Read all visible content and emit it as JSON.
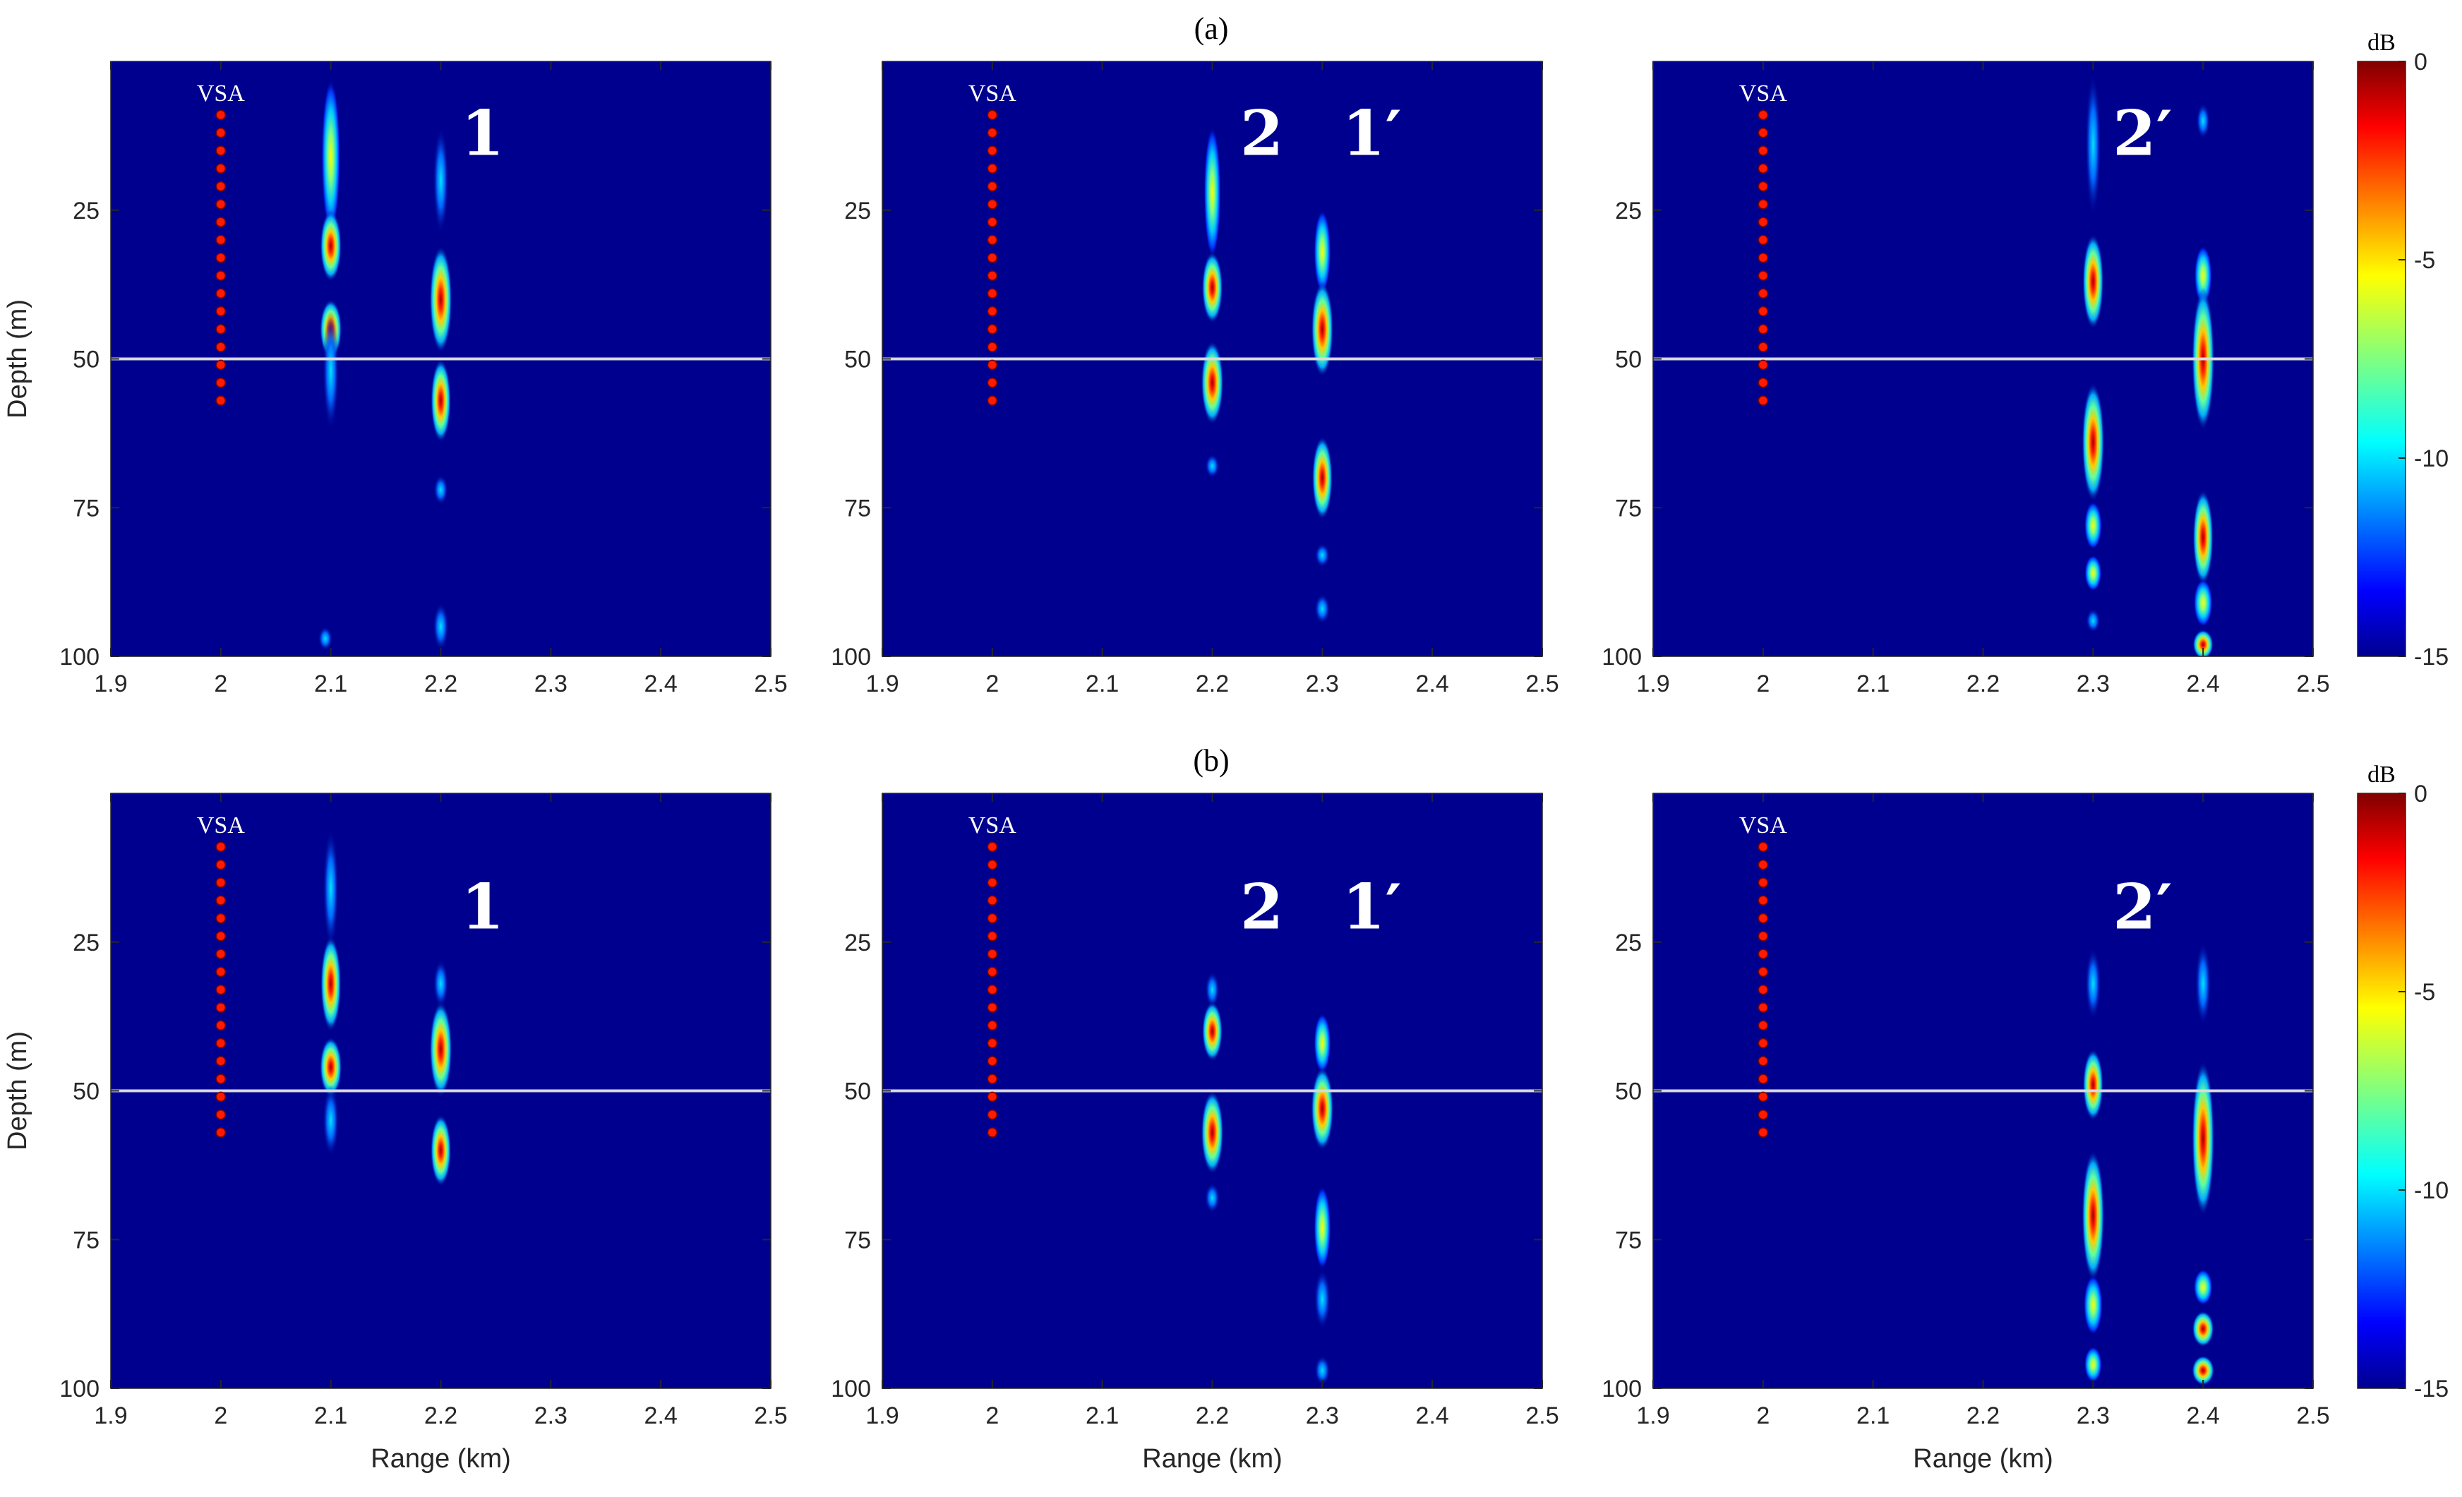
{
  "colors": {
    "background": "#00008f",
    "interface_line": "#d9d9d9",
    "element_dot": "#ff1a00",
    "element_dot_stroke": "#7a0000",
    "text_on_plot": "#ffffff"
  },
  "chart_data": [
    {
      "type": "heatmap",
      "id": "a1",
      "row": "(a)",
      "xlabel": "",
      "ylabel": "Depth (m)",
      "xlim": [
        1.9,
        2.5
      ],
      "ylim": [
        0,
        100
      ],
      "xticks": [
        "1.9",
        "2",
        "2.1",
        "2.2",
        "2.3",
        "2.4",
        "2.5"
      ],
      "yticks": [
        "25",
        "50",
        "75",
        "100"
      ],
      "interface_depth": 50,
      "array": {
        "label": "VSA",
        "range": 2.0,
        "depths": [
          9,
          12,
          15,
          18,
          21,
          24,
          27,
          30,
          33,
          36,
          39,
          42,
          45,
          48,
          51,
          54,
          57
        ]
      },
      "annotations": [
        {
          "text": "1",
          "range": 2.238,
          "depth": 13
        }
      ],
      "focal_streaks": [
        {
          "range": 2.1,
          "depth": 16,
          "length": 26,
          "level": 0.7
        },
        {
          "range": 2.1,
          "depth": 31,
          "length": 12,
          "level": 0.92
        },
        {
          "range": 2.1,
          "depth": 45,
          "length": 10,
          "level": 0.97
        },
        {
          "range": 2.1,
          "depth": 52,
          "length": 20,
          "level": 0.5
        },
        {
          "range": 2.2,
          "depth": 20,
          "length": 18,
          "level": 0.45
        },
        {
          "range": 2.2,
          "depth": 40,
          "length": 18,
          "level": 1.0
        },
        {
          "range": 2.2,
          "depth": 57,
          "length": 14,
          "level": 0.82
        },
        {
          "range": 2.2,
          "depth": 72,
          "length": 5,
          "level": 0.35
        },
        {
          "range": 2.2,
          "depth": 95,
          "length": 8,
          "level": 0.45
        },
        {
          "range": 2.095,
          "depth": 97,
          "length": 4,
          "level": 0.35
        }
      ]
    },
    {
      "type": "heatmap",
      "id": "a2",
      "row": "(a)",
      "xlabel": "",
      "ylabel": "",
      "xlim": [
        1.9,
        2.5
      ],
      "ylim": [
        0,
        100
      ],
      "xticks": [
        "1.9",
        "2",
        "2.1",
        "2.2",
        "2.3",
        "2.4",
        "2.5"
      ],
      "yticks": [
        "25",
        "50",
        "75",
        "100"
      ],
      "interface_depth": 50,
      "array": {
        "label": "VSA",
        "range": 2.0,
        "depths": [
          9,
          12,
          15,
          18,
          21,
          24,
          27,
          30,
          33,
          36,
          39,
          42,
          45,
          48,
          51,
          54,
          57
        ]
      },
      "annotations": [
        {
          "text": "2",
          "range": 2.245,
          "depth": 13
        },
        {
          "text": "1′",
          "range": 2.345,
          "depth": 13
        }
      ],
      "focal_streaks": [
        {
          "range": 2.2,
          "depth": 22,
          "length": 22,
          "level": 0.55
        },
        {
          "range": 2.2,
          "depth": 38,
          "length": 12,
          "level": 0.88
        },
        {
          "range": 2.2,
          "depth": 54,
          "length": 14,
          "level": 1.0
        },
        {
          "range": 2.2,
          "depth": 68,
          "length": 4,
          "level": 0.35
        },
        {
          "range": 2.3,
          "depth": 32,
          "length": 14,
          "level": 0.55
        },
        {
          "range": 2.3,
          "depth": 45,
          "length": 16,
          "level": 0.97
        },
        {
          "range": 2.3,
          "depth": 70,
          "length": 14,
          "level": 0.85
        },
        {
          "range": 2.3,
          "depth": 83,
          "length": 4,
          "level": 0.4
        },
        {
          "range": 2.3,
          "depth": 92,
          "length": 5,
          "level": 0.45
        }
      ]
    },
    {
      "type": "heatmap",
      "id": "a3",
      "row": "(a)",
      "xlabel": "",
      "ylabel": "",
      "xlim": [
        1.9,
        2.5
      ],
      "ylim": [
        0,
        100
      ],
      "xticks": [
        "1.9",
        "2",
        "2.1",
        "2.2",
        "2.3",
        "2.4",
        "2.5"
      ],
      "yticks": [
        "25",
        "50",
        "75",
        "100"
      ],
      "interface_depth": 50,
      "array": {
        "label": "VSA",
        "range": 2.0,
        "depths": [
          9,
          12,
          15,
          18,
          21,
          24,
          27,
          30,
          33,
          36,
          39,
          42,
          45,
          48,
          51,
          54,
          57
        ]
      },
      "annotations": [
        {
          "text": "2′",
          "range": 2.345,
          "depth": 13
        }
      ],
      "focal_streaks": [
        {
          "range": 2.3,
          "depth": 14,
          "length": 24,
          "level": 0.45
        },
        {
          "range": 2.3,
          "depth": 37,
          "length": 16,
          "level": 0.9
        },
        {
          "range": 2.3,
          "depth": 64,
          "length": 20,
          "level": 1.0
        },
        {
          "range": 2.3,
          "depth": 78,
          "length": 8,
          "level": 0.6
        },
        {
          "range": 2.3,
          "depth": 86,
          "length": 6,
          "level": 0.55
        },
        {
          "range": 2.3,
          "depth": 94,
          "length": 4,
          "level": 0.35
        },
        {
          "range": 2.4,
          "depth": 10,
          "length": 6,
          "level": 0.3
        },
        {
          "range": 2.4,
          "depth": 36,
          "length": 10,
          "level": 0.6
        },
        {
          "range": 2.4,
          "depth": 50,
          "length": 24,
          "level": 1.0
        },
        {
          "range": 2.4,
          "depth": 80,
          "length": 16,
          "level": 0.85
        },
        {
          "range": 2.4,
          "depth": 91,
          "length": 8,
          "level": 0.7
        },
        {
          "range": 2.4,
          "depth": 98,
          "length": 5,
          "level": 0.85
        }
      ]
    },
    {
      "type": "heatmap",
      "id": "b1",
      "row": "(b)",
      "xlabel": "Range (km)",
      "ylabel": "Depth (m)",
      "xlim": [
        1.9,
        2.5
      ],
      "ylim": [
        0,
        100
      ],
      "xticks": [
        "1.9",
        "2",
        "2.1",
        "2.2",
        "2.3",
        "2.4",
        "2.5"
      ],
      "yticks": [
        "25",
        "50",
        "75",
        "100"
      ],
      "interface_depth": 50,
      "array": {
        "label": "VSA",
        "range": 2.0,
        "depths": [
          9,
          12,
          15,
          18,
          21,
          24,
          27,
          30,
          33,
          36,
          39,
          42,
          45,
          48,
          51,
          54,
          57
        ]
      },
      "annotations": [
        {
          "text": "1",
          "range": 2.238,
          "depth": 20
        }
      ],
      "focal_streaks": [
        {
          "range": 2.1,
          "depth": 16,
          "length": 20,
          "level": 0.45
        },
        {
          "range": 2.1,
          "depth": 32,
          "length": 16,
          "level": 0.85
        },
        {
          "range": 2.1,
          "depth": 46,
          "length": 10,
          "level": 0.97
        },
        {
          "range": 2.1,
          "depth": 55,
          "length": 12,
          "level": 0.5
        },
        {
          "range": 2.2,
          "depth": 32,
          "length": 8,
          "level": 0.4
        },
        {
          "range": 2.2,
          "depth": 43,
          "length": 16,
          "level": 1.0
        },
        {
          "range": 2.2,
          "depth": 60,
          "length": 12,
          "level": 0.85
        }
      ]
    },
    {
      "type": "heatmap",
      "id": "b2",
      "row": "(b)",
      "xlabel": "Range (km)",
      "ylabel": "",
      "xlim": [
        1.9,
        2.5
      ],
      "ylim": [
        0,
        100
      ],
      "xticks": [
        "1.9",
        "2",
        "2.1",
        "2.2",
        "2.3",
        "2.4",
        "2.5"
      ],
      "yticks": [
        "25",
        "50",
        "75",
        "100"
      ],
      "interface_depth": 50,
      "array": {
        "label": "VSA",
        "range": 2.0,
        "depths": [
          9,
          12,
          15,
          18,
          21,
          24,
          27,
          30,
          33,
          36,
          39,
          42,
          45,
          48,
          51,
          54,
          57
        ]
      },
      "annotations": [
        {
          "text": "2",
          "range": 2.245,
          "depth": 20
        },
        {
          "text": "1′",
          "range": 2.345,
          "depth": 20
        }
      ],
      "focal_streaks": [
        {
          "range": 2.2,
          "depth": 33,
          "length": 6,
          "level": 0.35
        },
        {
          "range": 2.2,
          "depth": 40,
          "length": 10,
          "level": 0.85
        },
        {
          "range": 2.2,
          "depth": 57,
          "length": 14,
          "level": 1.0
        },
        {
          "range": 2.2,
          "depth": 68,
          "length": 5,
          "level": 0.4
        },
        {
          "range": 2.3,
          "depth": 42,
          "length": 10,
          "level": 0.55
        },
        {
          "range": 2.3,
          "depth": 53,
          "length": 14,
          "level": 1.0
        },
        {
          "range": 2.3,
          "depth": 73,
          "length": 14,
          "level": 0.55
        },
        {
          "range": 2.3,
          "depth": 85,
          "length": 10,
          "level": 0.5
        },
        {
          "range": 2.3,
          "depth": 97,
          "length": 5,
          "level": 0.45
        }
      ]
    },
    {
      "type": "heatmap",
      "id": "b3",
      "row": "(b)",
      "xlabel": "Range (km)",
      "ylabel": "",
      "xlim": [
        1.9,
        2.5
      ],
      "ylim": [
        0,
        100
      ],
      "xticks": [
        "1.9",
        "2",
        "2.1",
        "2.2",
        "2.3",
        "2.4",
        "2.5"
      ],
      "yticks": [
        "25",
        "50",
        "75",
        "100"
      ],
      "interface_depth": 50,
      "array": {
        "label": "VSA",
        "range": 2.0,
        "depths": [
          9,
          12,
          15,
          18,
          21,
          24,
          27,
          30,
          33,
          36,
          39,
          42,
          45,
          48,
          51,
          54,
          57
        ]
      },
      "annotations": [
        {
          "text": "2′",
          "range": 2.345,
          "depth": 20
        }
      ],
      "focal_streaks": [
        {
          "range": 2.3,
          "depth": 32,
          "length": 12,
          "level": 0.45
        },
        {
          "range": 2.3,
          "depth": 49,
          "length": 12,
          "level": 0.85
        },
        {
          "range": 2.3,
          "depth": 71,
          "length": 22,
          "level": 1.0
        },
        {
          "range": 2.3,
          "depth": 86,
          "length": 10,
          "level": 0.7
        },
        {
          "range": 2.3,
          "depth": 96,
          "length": 6,
          "level": 0.6
        },
        {
          "range": 2.4,
          "depth": 32,
          "length": 14,
          "level": 0.45
        },
        {
          "range": 2.4,
          "depth": 58,
          "length": 26,
          "level": 1.0
        },
        {
          "range": 2.4,
          "depth": 83,
          "length": 6,
          "level": 0.7
        },
        {
          "range": 2.4,
          "depth": 90,
          "length": 6,
          "level": 0.95
        },
        {
          "range": 2.4,
          "depth": 97,
          "length": 5,
          "level": 1.0
        }
      ]
    }
  ],
  "row_labels": [
    "(a)",
    "(b)"
  ],
  "colorbar": {
    "unit": "dB",
    "range": [
      -15,
      0
    ],
    "ticks": [
      "0",
      "-5",
      "-10",
      "-15"
    ],
    "colormap": "jet"
  }
}
